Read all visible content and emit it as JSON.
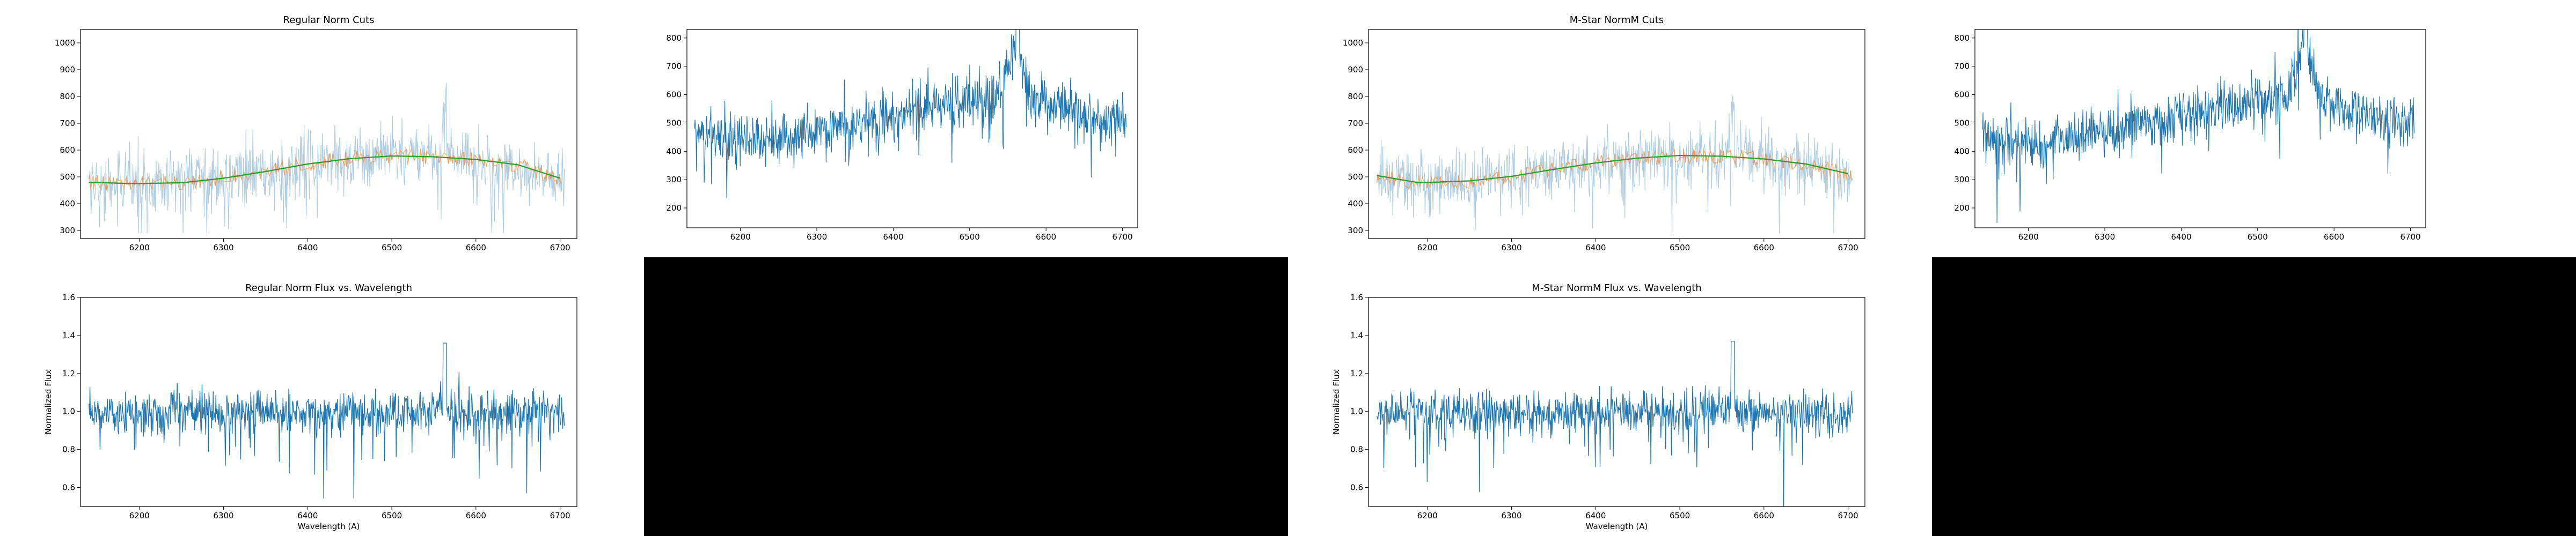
{
  "page": {
    "background": "#000000",
    "figure_background": "#ffffff"
  },
  "colors": {
    "flux_light": "#a6c8e0",
    "flux": "#1f77b4",
    "cuts": "#ff7f0e",
    "fit_green": "#2ca02c",
    "fit_red": "#d62728",
    "fit_orange": "#e08030"
  },
  "panels": {
    "reg_cuts": {
      "title": "Regular Norm Cuts",
      "xticks": [
        "6200",
        "6300",
        "6400",
        "6500",
        "6600",
        "6700"
      ],
      "yticks": [
        "300",
        "400",
        "500",
        "600",
        "700",
        "800",
        "900",
        "1000"
      ]
    },
    "reg_small": {
      "xticks": [
        "6200",
        "6300",
        "6400",
        "6500",
        "6600",
        "6700"
      ],
      "yticks": [
        "200",
        "300",
        "400",
        "500",
        "600",
        "700",
        "800"
      ]
    },
    "reg_norm": {
      "title": "Regular Norm Flux vs. Wavelength",
      "xlabel": "Wavelength (A)",
      "ylabel": "Normalized Flux",
      "xticks": [
        "6200",
        "6300",
        "6400",
        "6500",
        "6600",
        "6700"
      ],
      "yticks": [
        "0.6",
        "0.8",
        "1.0",
        "1.2",
        "1.4",
        "1.6"
      ]
    },
    "m_cuts": {
      "title": "M-Star NormM Cuts",
      "xticks": [
        "6200",
        "6300",
        "6400",
        "6500",
        "6600",
        "6700"
      ],
      "yticks": [
        "300",
        "400",
        "500",
        "600",
        "700",
        "800",
        "900",
        "1000"
      ]
    },
    "m_small": {
      "xticks": [
        "6200",
        "6300",
        "6400",
        "6500",
        "6600",
        "6700"
      ],
      "yticks": [
        "200",
        "300",
        "400",
        "500",
        "600",
        "700",
        "800"
      ]
    },
    "m_norm": {
      "title": "M-Star NormM Flux vs. Wavelength",
      "xlabel": "Wavelength (A)",
      "ylabel": "Normalized Flux",
      "xticks": [
        "6200",
        "6300",
        "6400",
        "6500",
        "6600",
        "6700"
      ],
      "yticks": [
        "0.6",
        "0.8",
        "1.0",
        "1.2",
        "1.4",
        "1.6"
      ]
    }
  },
  "chart_data": [
    {
      "type": "line",
      "title": "Regular Norm Cuts",
      "xlabel": "",
      "ylabel": "",
      "xlim": [
        6130,
        6720
      ],
      "ylim": [
        270,
        1050
      ],
      "series": [
        {
          "x": [
            6140,
            6200,
            6250,
            6300,
            6350,
            6400,
            6450,
            6500,
            6530,
            6550,
            6560,
            6600,
            6650,
            6700
          ],
          "y": [
            480,
            470,
            480,
            500,
            520,
            545,
            565,
            580,
            585,
            580,
            600,
            560,
            540,
            490
          ]
        },
        {
          "x": [
            6140,
            6190,
            6250,
            6300,
            6350,
            6400,
            6450,
            6500,
            6550,
            6600,
            6650,
            6700
          ],
          "y": [
            480,
            475,
            478,
            495,
            520,
            548,
            568,
            578,
            575,
            565,
            545,
            495
          ]
        }
      ]
    },
    {
      "type": "line",
      "title": "",
      "xlabel": "",
      "ylabel": "",
      "xlim": [
        6130,
        6720
      ],
      "ylim": [
        130,
        830
      ],
      "series": [
        {
          "x": [
            6140,
            6180,
            6220,
            6260,
            6300,
            6340,
            6380,
            6420,
            6460,
            6500,
            6540,
            6560,
            6580,
            6620,
            6660,
            6700
          ],
          "y": [
            470,
            450,
            430,
            460,
            470,
            500,
            520,
            540,
            560,
            580,
            600,
            790,
            590,
            550,
            520,
            500
          ]
        }
      ]
    },
    {
      "type": "line",
      "title": "Regular Norm Flux vs. Wavelength",
      "xlabel": "Wavelength (A)",
      "ylabel": "Normalized Flux",
      "xlim": [
        6130,
        6720
      ],
      "ylim": [
        0.5,
        1.6
      ],
      "series": [
        {
          "x": [
            6140,
            6180,
            6220,
            6260,
            6300,
            6340,
            6380,
            6420,
            6460,
            6500,
            6540,
            6560,
            6580,
            6620,
            6660,
            6700
          ],
          "y": [
            1.0,
            0.98,
            0.97,
            0.99,
            1.0,
            1.0,
            0.99,
            1.0,
            1.0,
            1.0,
            1.02,
            1.36,
            1.0,
            1.0,
            1.0,
            1.0
          ]
        }
      ]
    },
    {
      "type": "line",
      "title": "M-Star NormM Cuts",
      "xlabel": "",
      "ylabel": "",
      "xlim": [
        6130,
        6720
      ],
      "ylim": [
        270,
        1050
      ],
      "series": [
        {
          "x": [
            6140,
            6200,
            6250,
            6300,
            6350,
            6400,
            6450,
            6500,
            6530,
            6550,
            6560,
            6600,
            6650,
            6700
          ],
          "y": [
            505,
            480,
            490,
            505,
            525,
            550,
            568,
            582,
            585,
            580,
            600,
            565,
            545,
            510
          ]
        },
        {
          "x": [
            6140,
            6190,
            6250,
            6300,
            6350,
            6400,
            6450,
            6500,
            6550,
            6600,
            6650,
            6700
          ],
          "y": [
            505,
            478,
            485,
            502,
            528,
            552,
            570,
            580,
            577,
            567,
            548,
            512
          ]
        }
      ]
    },
    {
      "type": "line",
      "title": "",
      "xlabel": "",
      "ylabel": "",
      "xlim": [
        6130,
        6720
      ],
      "ylim": [
        130,
        830
      ],
      "series": [
        {
          "x": [
            6140,
            6180,
            6220,
            6260,
            6300,
            6340,
            6380,
            6420,
            6460,
            6500,
            6540,
            6560,
            6580,
            6620,
            6660,
            6700
          ],
          "y": [
            470,
            450,
            430,
            460,
            470,
            500,
            520,
            540,
            560,
            580,
            600,
            790,
            590,
            550,
            520,
            500
          ]
        }
      ]
    },
    {
      "type": "line",
      "title": "M-Star NormM Flux vs. Wavelength",
      "xlabel": "Wavelength (A)",
      "ylabel": "Normalized Flux",
      "xlim": [
        6130,
        6720
      ],
      "ylim": [
        0.5,
        1.6
      ],
      "series": [
        {
          "x": [
            6140,
            6180,
            6220,
            6260,
            6300,
            6340,
            6380,
            6420,
            6460,
            6500,
            6540,
            6560,
            6580,
            6620,
            6660,
            6700
          ],
          "y": [
            1.0,
            0.98,
            0.97,
            0.99,
            1.0,
            1.0,
            0.99,
            1.0,
            1.0,
            1.0,
            1.02,
            1.37,
            1.0,
            1.0,
            1.0,
            1.0
          ]
        }
      ]
    }
  ]
}
